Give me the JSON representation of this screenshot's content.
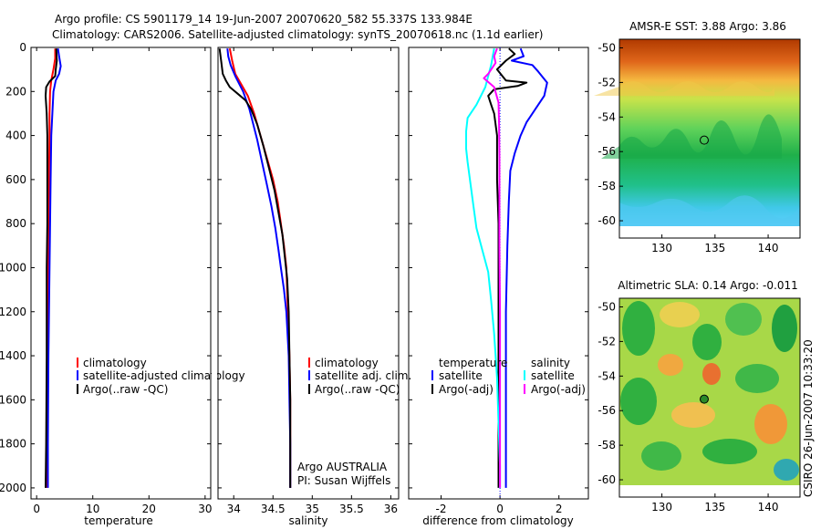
{
  "title_line1": "Argo profile: CS 5901179_14 19-Jun-2007 20070620_582 55.337S 133.984E",
  "title_line2": "Climatology: CARS2006. Satellite-adjusted climatology: synTS_20070618.nc (1.1d earlier)",
  "side_label": "CSIRO 26-Jun-2007 10:33:20",
  "colors": {
    "climatology": "#ff0000",
    "satellite": "#0000ff",
    "argo": "#000000",
    "sal_satellite": "#00ffff",
    "sal_argo": "#ff00ff"
  },
  "chart_data": [
    {
      "type": "line",
      "xlabel": "temperature",
      "xlim": [
        -1,
        31
      ],
      "ylim": [
        0,
        2050
      ],
      "y_reversed": true,
      "xticks": [
        0,
        10,
        20,
        30
      ],
      "yticks": [
        0,
        200,
        400,
        600,
        800,
        1000,
        1200,
        1400,
        1600,
        1800,
        2000
      ],
      "legend": [
        "climatology",
        "satellite-adjusted climatology",
        "Argo(..raw -QC)"
      ],
      "series": [
        {
          "name": "climatology",
          "color": "#ff0000",
          "points": [
            [
              3.3,
              5
            ],
            [
              3.3,
              50
            ],
            [
              3.0,
              100
            ],
            [
              2.6,
              150
            ],
            [
              2.4,
              200
            ],
            [
              2.3,
              300
            ],
            [
              2.3,
              400
            ],
            [
              2.2,
              600
            ],
            [
              2.1,
              800
            ],
            [
              2.0,
              1000
            ],
            [
              2.0,
              1200
            ],
            [
              1.95,
              1400
            ],
            [
              1.9,
              1600
            ],
            [
              1.85,
              1800
            ],
            [
              1.8,
              2000
            ]
          ]
        },
        {
          "name": "satellite-adjusted climatology",
          "color": "#0000ff",
          "points": [
            [
              3.8,
              5
            ],
            [
              4.0,
              40
            ],
            [
              4.3,
              85
            ],
            [
              4.0,
              120
            ],
            [
              3.4,
              150
            ],
            [
              3.0,
              200
            ],
            [
              2.8,
              300
            ],
            [
              2.6,
              400
            ],
            [
              2.5,
              600
            ],
            [
              2.4,
              800
            ],
            [
              2.3,
              1000
            ],
            [
              2.2,
              1200
            ],
            [
              2.1,
              1400
            ],
            [
              2.05,
              1600
            ],
            [
              2.0,
              1800
            ],
            [
              2.0,
              2000
            ]
          ]
        },
        {
          "name": "Argo(..raw -QC)",
          "color": "#000000",
          "points": [
            [
              3.5,
              5
            ],
            [
              3.6,
              60
            ],
            [
              3.4,
              100
            ],
            [
              3.3,
              130
            ],
            [
              2.3,
              155
            ],
            [
              1.7,
              180
            ],
            [
              1.6,
              220
            ],
            [
              1.8,
              300
            ],
            [
              1.9,
              400
            ],
            [
              1.9,
              600
            ],
            [
              1.9,
              800
            ],
            [
              1.8,
              1000
            ],
            [
              1.8,
              1200
            ],
            [
              1.8,
              1400
            ],
            [
              1.75,
              1600
            ],
            [
              1.7,
              1800
            ],
            [
              1.6,
              2000
            ]
          ]
        }
      ]
    },
    {
      "type": "line",
      "xlabel": "salinity",
      "xlim": [
        33.8,
        36.1
      ],
      "ylim": [
        0,
        2050
      ],
      "y_reversed": true,
      "xticks": [
        34,
        34.5,
        35,
        35.5,
        36
      ],
      "yticks": [
        0,
        200,
        400,
        600,
        800,
        1000,
        1200,
        1400,
        1600,
        1800,
        2000
      ],
      "legend": [
        "climatology",
        "satellite adj. clim.",
        "Argo(..raw -QC)"
      ],
      "annotation": [
        "Argo AUSTRALIA",
        "PI: Susan Wijffels"
      ],
      "series": [
        {
          "name": "climatology",
          "color": "#ff0000",
          "points": [
            [
              33.95,
              5
            ],
            [
              33.98,
              60
            ],
            [
              34.02,
              120
            ],
            [
              34.1,
              170
            ],
            [
              34.18,
              220
            ],
            [
              34.26,
              300
            ],
            [
              34.34,
              400
            ],
            [
              34.42,
              500
            ],
            [
              34.5,
              600
            ],
            [
              34.56,
              700
            ],
            [
              34.6,
              800
            ],
            [
              34.64,
              900
            ],
            [
              34.67,
              1000
            ],
            [
              34.69,
              1200
            ],
            [
              34.71,
              1400
            ],
            [
              34.72,
              1600
            ],
            [
              34.72,
              1800
            ],
            [
              34.72,
              2000
            ]
          ]
        },
        {
          "name": "satellite adj. clim.",
          "color": "#0000ff",
          "points": [
            [
              33.92,
              5
            ],
            [
              33.93,
              40
            ],
            [
              33.96,
              80
            ],
            [
              34.02,
              130
            ],
            [
              34.12,
              200
            ],
            [
              34.2,
              280
            ],
            [
              34.25,
              350
            ],
            [
              34.3,
              420
            ],
            [
              34.36,
              520
            ],
            [
              34.42,
              620
            ],
            [
              34.48,
              720
            ],
            [
              34.53,
              820
            ],
            [
              34.57,
              920
            ],
            [
              34.6,
              1000
            ],
            [
              34.64,
              1100
            ],
            [
              34.67,
              1200
            ],
            [
              34.7,
              1400
            ],
            [
              34.71,
              1600
            ],
            [
              34.72,
              1800
            ],
            [
              34.72,
              2000
            ]
          ]
        },
        {
          "name": "Argo(..raw -QC)",
          "color": "#000000",
          "points": [
            [
              33.82,
              5
            ],
            [
              33.84,
              60
            ],
            [
              33.86,
              120
            ],
            [
              33.9,
              150
            ],
            [
              33.95,
              180
            ],
            [
              34.05,
              210
            ],
            [
              34.15,
              240
            ],
            [
              34.22,
              280
            ],
            [
              34.3,
              350
            ],
            [
              34.38,
              450
            ],
            [
              34.45,
              550
            ],
            [
              34.52,
              650
            ],
            [
              34.57,
              750
            ],
            [
              34.62,
              850
            ],
            [
              34.65,
              950
            ],
            [
              34.68,
              1050
            ],
            [
              34.7,
              1200
            ],
            [
              34.71,
              1400
            ],
            [
              34.72,
              1600
            ],
            [
              34.72,
              1800
            ],
            [
              34.72,
              2000
            ]
          ]
        }
      ]
    },
    {
      "type": "line",
      "xlabel": "difference from climatology",
      "xlim": [
        -3.1,
        3.0
      ],
      "ylim": [
        0,
        2050
      ],
      "y_reversed": true,
      "xticks": [
        -2,
        0,
        2
      ],
      "yticks": [
        0,
        200,
        400,
        600,
        800,
        1000,
        1200,
        1400,
        1600,
        1800,
        2000
      ],
      "legend_left_title": "temperature",
      "legend_right_title": "salinity",
      "legend": [
        "satellite",
        "Argo(-adj)",
        "satellite",
        "Argo(-adj)"
      ],
      "series": [
        {
          "name": "temperature satellite",
          "color": "#0000ff",
          "points": [
            [
              0.7,
              5
            ],
            [
              0.8,
              40
            ],
            [
              0.4,
              60
            ],
            [
              1.1,
              80
            ],
            [
              1.3,
              110
            ],
            [
              1.6,
              160
            ],
            [
              1.5,
              220
            ],
            [
              1.2,
              280
            ],
            [
              0.9,
              340
            ],
            [
              0.7,
              400
            ],
            [
              0.5,
              480
            ],
            [
              0.35,
              560
            ],
            [
              0.3,
              700
            ],
            [
              0.25,
              900
            ],
            [
              0.2,
              1200
            ],
            [
              0.2,
              1500
            ],
            [
              0.2,
              1800
            ],
            [
              0.2,
              2000
            ]
          ]
        },
        {
          "name": "temperature Argo(-adj)",
          "color": "#000000",
          "points": [
            [
              0.3,
              5
            ],
            [
              0.5,
              30
            ],
            [
              0.2,
              60
            ],
            [
              -0.1,
              100
            ],
            [
              0.2,
              150
            ],
            [
              0.9,
              160
            ],
            [
              0.6,
              175
            ],
            [
              -0.2,
              190
            ],
            [
              -0.4,
              220
            ],
            [
              -0.3,
              260
            ],
            [
              -0.2,
              300
            ],
            [
              -0.1,
              400
            ],
            [
              -0.1,
              600
            ],
            [
              -0.05,
              800
            ],
            [
              -0.05,
              1200
            ],
            [
              -0.05,
              1600
            ],
            [
              -0.05,
              2000
            ]
          ]
        },
        {
          "name": "salinity satellite",
          "color": "#00ffff",
          "points": [
            [
              -0.2,
              5
            ],
            [
              -0.3,
              80
            ],
            [
              -0.5,
              180
            ],
            [
              -0.8,
              260
            ],
            [
              -1.1,
              320
            ],
            [
              -1.15,
              380
            ],
            [
              -1.15,
              460
            ],
            [
              -1.1,
              520
            ],
            [
              -1.0,
              620
            ],
            [
              -0.9,
              720
            ],
            [
              -0.8,
              820
            ],
            [
              -0.6,
              920
            ],
            [
              -0.4,
              1020
            ],
            [
              -0.3,
              1150
            ],
            [
              -0.2,
              1300
            ],
            [
              -0.1,
              1500
            ],
            [
              -0.05,
              1700
            ],
            [
              0,
              1900
            ],
            [
              0,
              2000
            ]
          ]
        },
        {
          "name": "salinity Argo(-adj)",
          "color": "#ff00ff",
          "points": [
            [
              -0.1,
              5
            ],
            [
              -0.2,
              40
            ],
            [
              -0.15,
              70
            ],
            [
              -0.4,
              120
            ],
            [
              -0.55,
              140
            ],
            [
              -0.2,
              180
            ],
            [
              -0.05,
              250
            ],
            [
              -0.03,
              350
            ],
            [
              -0.02,
              500
            ],
            [
              -0.02,
              700
            ],
            [
              -0.02,
              900
            ],
            [
              0,
              1200
            ],
            [
              0,
              1600
            ],
            [
              0,
              2000
            ]
          ]
        }
      ]
    },
    {
      "type": "heatmap",
      "title": "AMSR-E SST: 3.88 Argo: 3.86",
      "xlim": [
        126,
        143
      ],
      "ylim": [
        -61,
        -49.5
      ],
      "xticks": [
        130,
        135,
        140
      ],
      "yticks": [
        -50,
        -52,
        -54,
        -56,
        -58,
        -60
      ],
      "marker": {
        "lon": 133.984,
        "lat": -55.337
      }
    },
    {
      "type": "heatmap",
      "title": "Altimetric SLA: 0.14 Argo: -0.011",
      "xlim": [
        126,
        143
      ],
      "ylim": [
        -61,
        -49.5
      ],
      "xticks": [
        130,
        135,
        140
      ],
      "yticks": [
        -50,
        -52,
        -54,
        -56,
        -58,
        -60
      ],
      "marker": {
        "lon": 133.984,
        "lat": -55.337
      }
    }
  ]
}
